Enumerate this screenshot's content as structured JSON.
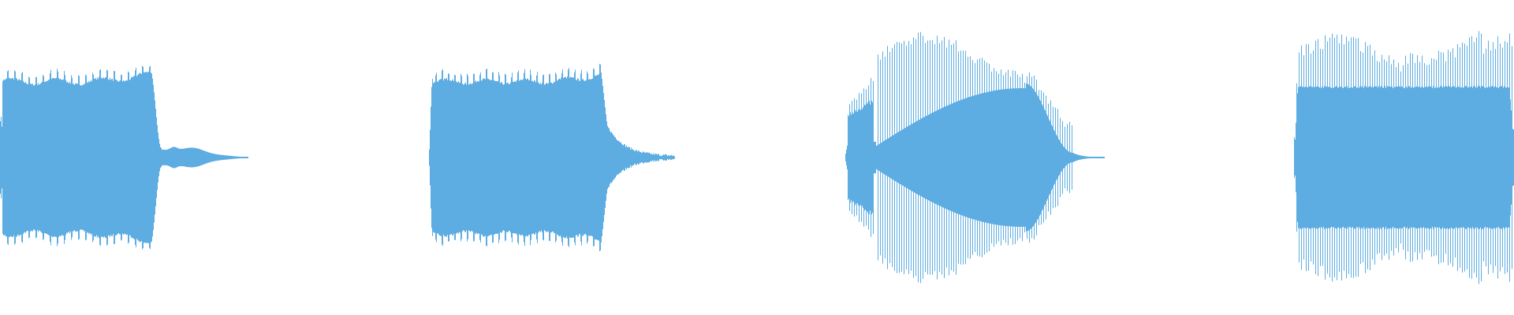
{
  "waveform_color": "#5DADE2",
  "background_color": "#FFFFFF",
  "waveforms": [
    {
      "id": "waveform-1"
    },
    {
      "id": "waveform-2"
    },
    {
      "id": "waveform-3"
    },
    {
      "id": "waveform-4"
    }
  ]
}
